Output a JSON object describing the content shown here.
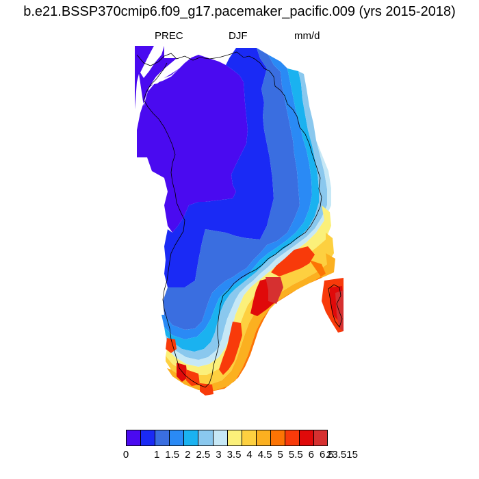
{
  "title": "b.e21.BSSP370cmip6.f09_g17.pacemaker_pacific.009 (yrs 2015-2018)",
  "left_string": "PREC",
  "center_string": "DJF",
  "right_string": "mm/d",
  "colorbar": {
    "colors": [
      "#4a0af0",
      "#1a2af5",
      "#3a6ee0",
      "#2a8af5",
      "#1ab2f0",
      "#8ac8ee",
      "#c6e8f6",
      "#fbf07a",
      "#fdd040",
      "#fbb020",
      "#fc7404",
      "#f83a0a",
      "#e00a0a",
      "#d63030"
    ],
    "labels": [
      "0",
      "1",
      "1.5",
      "2",
      "2.5",
      "3",
      "3.5",
      "4",
      "4.5",
      "5",
      "5.5",
      "6",
      "6.5",
      "23.515"
    ]
  }
}
